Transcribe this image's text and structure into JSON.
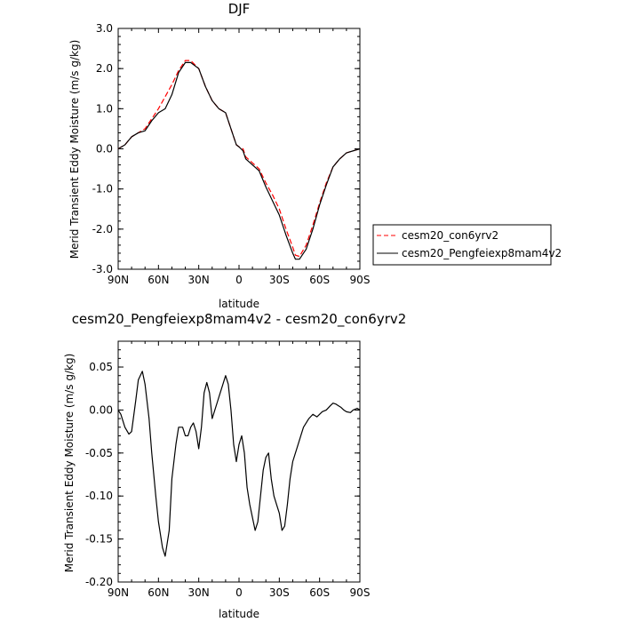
{
  "chart_data": [
    {
      "type": "line",
      "title": "DJF",
      "xlabel": "latitude",
      "ylabel": "Merid Transient Eddy Moisture (m/s g/kg)",
      "xlim": [
        90,
        -90
      ],
      "ylim": [
        -3.0,
        3.0
      ],
      "x_ticks": [
        90,
        60,
        30,
        0,
        -30,
        -60,
        -90
      ],
      "x_tick_labels": [
        "90N",
        "60N",
        "30N",
        "0",
        "30S",
        "60S",
        "90S"
      ],
      "y_ticks": [
        3.0,
        2.0,
        1.0,
        0.0,
        -1.0,
        -2.0,
        -3.0
      ],
      "y_tick_labels": [
        "3.0",
        "2.0",
        "1.0",
        "0.0",
        "-1.0",
        "-2.0",
        "-3.0"
      ],
      "grid": false,
      "legend": {
        "position": "right"
      },
      "series": [
        {
          "name": "cesm20_con6yrv2",
          "color": "#ff0000",
          "dash": "dashed",
          "x": [
            90,
            85,
            80,
            75,
            70,
            65,
            60,
            55,
            50,
            45,
            40,
            36,
            30,
            25,
            20,
            15,
            10,
            5,
            2,
            0,
            -3,
            -5,
            -10,
            -15,
            -20,
            -25,
            -30,
            -35,
            -40,
            -42,
            -45,
            -50,
            -55,
            -60,
            -65,
            -70,
            -75,
            -80,
            -85,
            -90
          ],
          "y": [
            0.0,
            0.1,
            0.3,
            0.4,
            0.5,
            0.75,
            1.0,
            1.3,
            1.6,
            1.95,
            2.2,
            2.2,
            2.0,
            1.55,
            1.2,
            1.0,
            0.9,
            0.4,
            0.1,
            0.05,
            0.0,
            -0.2,
            -0.35,
            -0.5,
            -0.85,
            -1.15,
            -1.5,
            -2.0,
            -2.45,
            -2.65,
            -2.68,
            -2.4,
            -1.9,
            -1.35,
            -0.85,
            -0.45,
            -0.25,
            -0.1,
            -0.05,
            0.0
          ]
        },
        {
          "name": "cesm20_Pengfeiexp8mam4v2",
          "color": "#000000",
          "dash": "solid",
          "x": [
            90,
            85,
            80,
            75,
            70,
            65,
            60,
            55,
            50,
            45,
            40,
            36,
            30,
            25,
            20,
            15,
            10,
            5,
            2,
            0,
            -3,
            -5,
            -10,
            -15,
            -20,
            -25,
            -30,
            -35,
            -40,
            -42,
            -45,
            -50,
            -55,
            -60,
            -65,
            -70,
            -75,
            -80,
            -85,
            -90
          ],
          "y": [
            0.0,
            0.1,
            0.3,
            0.4,
            0.45,
            0.7,
            0.9,
            1.0,
            1.35,
            1.9,
            2.15,
            2.15,
            2.0,
            1.55,
            1.2,
            1.0,
            0.9,
            0.4,
            0.1,
            0.05,
            -0.05,
            -0.25,
            -0.4,
            -0.55,
            -0.95,
            -1.3,
            -1.65,
            -2.15,
            -2.6,
            -2.75,
            -2.75,
            -2.5,
            -2.0,
            -1.4,
            -0.9,
            -0.45,
            -0.25,
            -0.1,
            -0.05,
            0.0
          ]
        }
      ]
    },
    {
      "type": "line",
      "title": "cesm20_Pengfeiexp8mam4v2 - cesm20_con6yrv2",
      "xlabel": "latitude",
      "ylabel": "Merid Transient Eddy Moisture (m/s g/kg)",
      "xlim": [
        90,
        -90
      ],
      "ylim": [
        -0.2,
        0.08
      ],
      "x_ticks": [
        90,
        60,
        30,
        0,
        -30,
        -60,
        -90
      ],
      "x_tick_labels": [
        "90N",
        "60N",
        "30N",
        "0",
        "30S",
        "60S",
        "90S"
      ],
      "y_ticks": [
        0.05,
        0.0,
        -0.05,
        -0.1,
        -0.15,
        -0.2
      ],
      "y_tick_labels": [
        "0.05",
        "0.00",
        "-0.05",
        "-0.10",
        "-0.15",
        "-0.20"
      ],
      "grid": false,
      "series": [
        {
          "color": "#000000",
          "dash": "solid",
          "x": [
            90,
            88,
            85,
            82,
            80,
            77,
            75,
            72,
            70,
            67,
            65,
            62,
            60,
            57,
            55,
            52,
            50,
            47,
            45,
            42,
            40,
            38,
            36,
            34,
            32,
            30,
            28,
            26,
            24,
            22,
            20,
            18,
            16,
            14,
            12,
            10,
            8,
            6,
            4,
            2,
            0,
            -2,
            -4,
            -6,
            -8,
            -10,
            -12,
            -14,
            -16,
            -18,
            -20,
            -22,
            -24,
            -26,
            -28,
            -30,
            -32,
            -34,
            -36,
            -38,
            -40,
            -42,
            -44,
            -46,
            -48,
            -50,
            -52,
            -55,
            -58,
            -62,
            -65,
            -68,
            -70,
            -72,
            -74,
            -76,
            -78,
            -80,
            -83,
            -85,
            -88,
            -90
          ],
          "y": [
            0.0,
            -0.005,
            -0.02,
            -0.028,
            -0.025,
            0.01,
            0.035,
            0.045,
            0.03,
            -0.01,
            -0.05,
            -0.1,
            -0.13,
            -0.16,
            -0.17,
            -0.14,
            -0.08,
            -0.04,
            -0.02,
            -0.02,
            -0.03,
            -0.03,
            -0.02,
            -0.015,
            -0.025,
            -0.045,
            -0.02,
            0.02,
            0.032,
            0.02,
            -0.01,
            0.0,
            0.01,
            0.02,
            0.03,
            0.04,
            0.03,
            0.0,
            -0.04,
            -0.06,
            -0.04,
            -0.03,
            -0.05,
            -0.09,
            -0.11,
            -0.125,
            -0.14,
            -0.13,
            -0.1,
            -0.07,
            -0.055,
            -0.05,
            -0.08,
            -0.1,
            -0.11,
            -0.12,
            -0.14,
            -0.135,
            -0.11,
            -0.08,
            -0.06,
            -0.05,
            -0.04,
            -0.03,
            -0.02,
            -0.015,
            -0.01,
            -0.005,
            -0.008,
            -0.002,
            0.0,
            0.005,
            0.008,
            0.007,
            0.005,
            0.003,
            0.0,
            -0.002,
            -0.003,
            0.0,
            0.002,
            0.0
          ]
        }
      ]
    }
  ]
}
